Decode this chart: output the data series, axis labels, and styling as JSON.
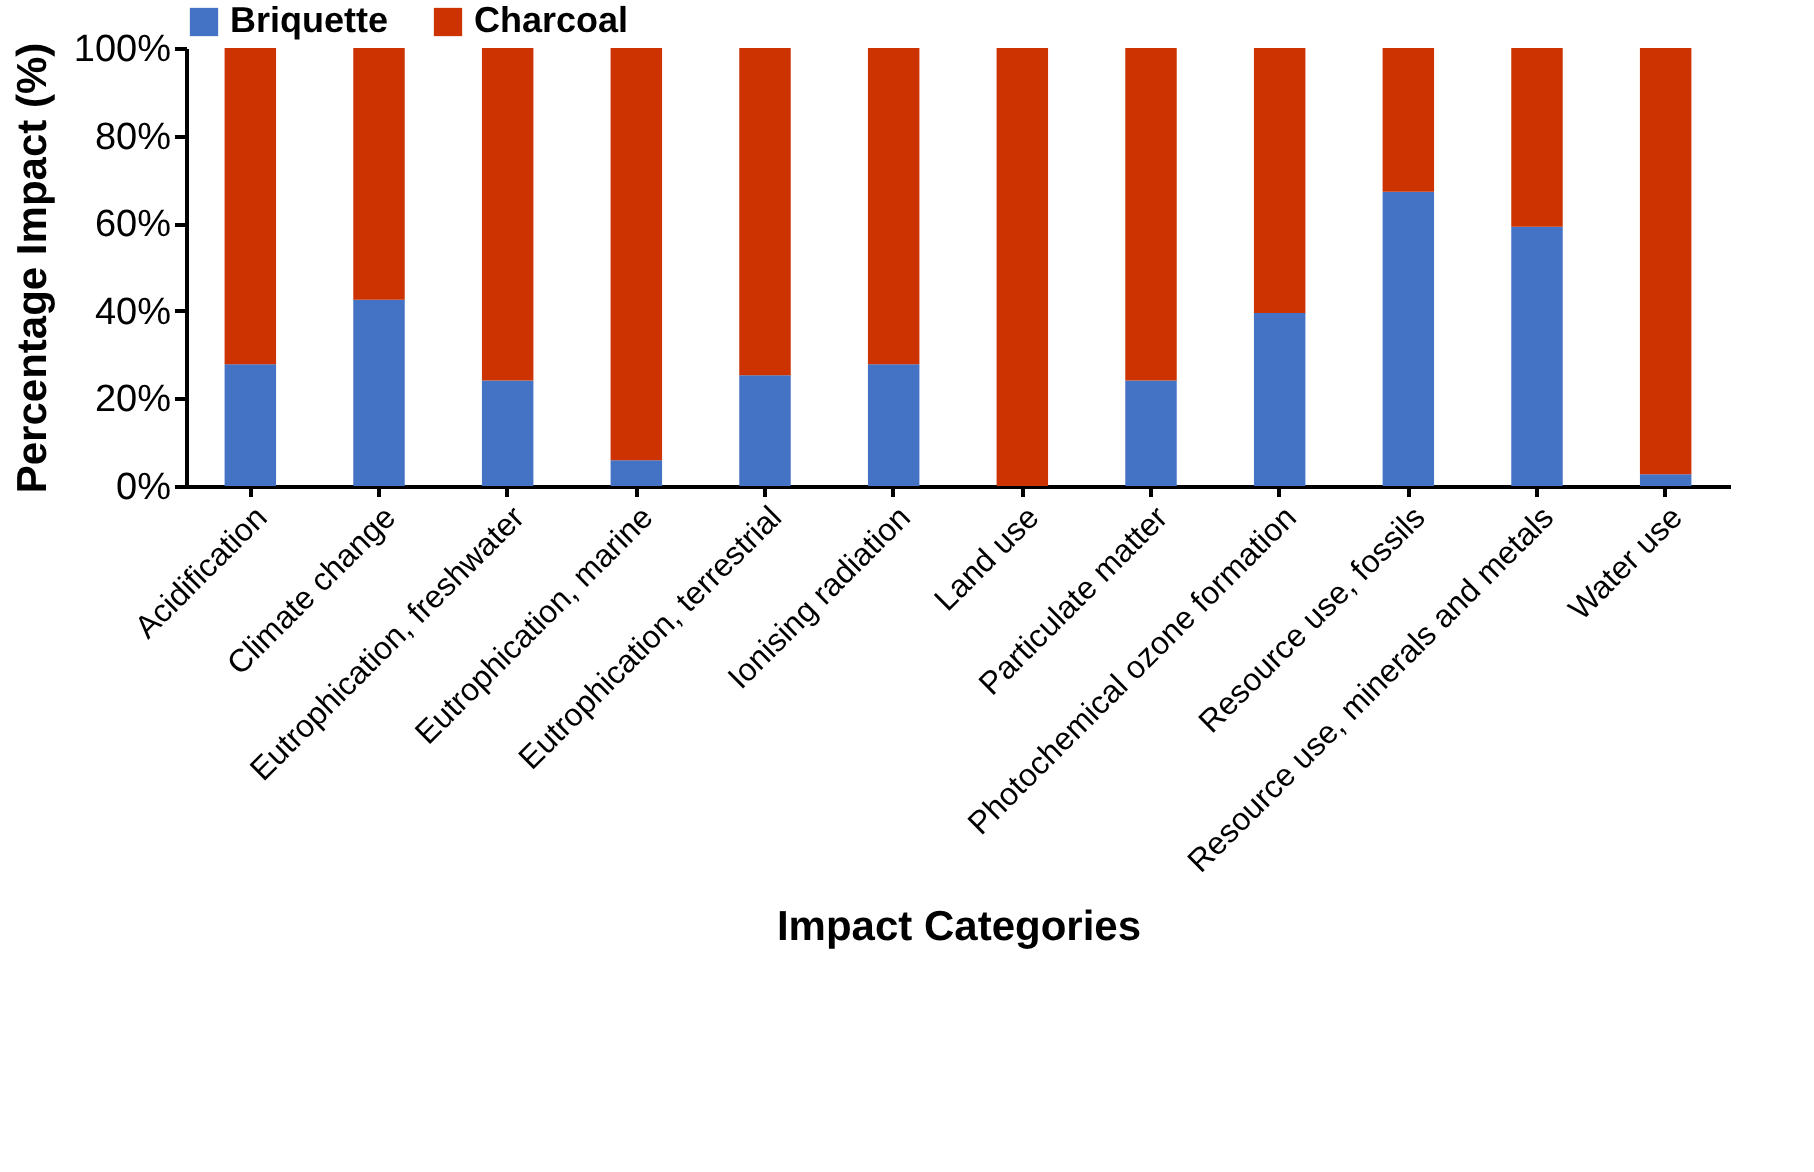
{
  "chart_data": {
    "type": "bar",
    "stacked": true,
    "xlabel": "Impact Categories",
    "ylabel": "Percentage  Impact (%)",
    "categories": [
      "Acidification",
      "Climate change",
      "Eutrophication, freshwater",
      "Eutrophication, marine",
      "Eutrophication, terrestrial",
      "Ionising radiation",
      "Land use",
      "Particulate matter",
      "Photochemical ozone formation",
      "Resource use, fossils",
      "Resource use, minerals and metals",
      "Water use"
    ],
    "series": [
      {
        "name": "Briquette",
        "color": "#4472c4",
        "values": [
          27.8,
          42.5,
          24.1,
          5.9,
          25.3,
          27.8,
          0,
          24.1,
          39.5,
          67.2,
          59.2,
          2.7
        ]
      },
      {
        "name": "Charcoal",
        "color": "#cc3300",
        "values": [
          72.2,
          57.5,
          75.9,
          94.1,
          74.7,
          72.2,
          100,
          75.9,
          60.5,
          32.8,
          40.8,
          97.3
        ]
      }
    ],
    "ylim": [
      0,
      100
    ],
    "yticks": [
      {
        "value": 0,
        "label": "0%"
      },
      {
        "value": 20,
        "label": "20%"
      },
      {
        "value": 40,
        "label": "40%"
      },
      {
        "value": 60,
        "label": "60%"
      },
      {
        "value": 80,
        "label": "80%"
      },
      {
        "value": 100,
        "label": "100%"
      }
    ],
    "grid": false,
    "legend": "top"
  }
}
